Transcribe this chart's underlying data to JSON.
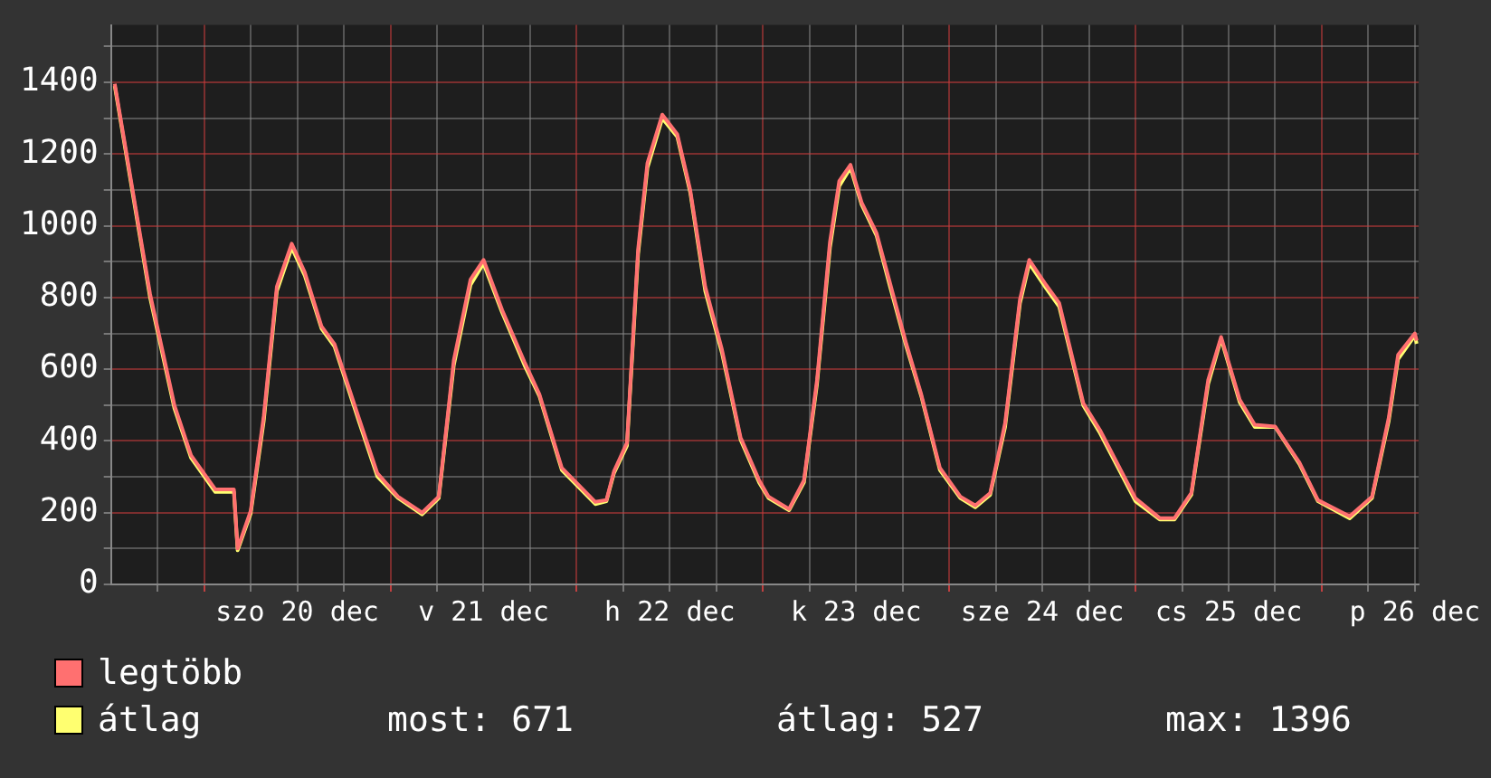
{
  "chart_data": {
    "type": "line",
    "x": [
      "--12-19T12:29",
      "--12-19T17:02",
      "--12-19T20:10",
      "--12-19T22:19",
      "--12-20T01:26",
      "--12-20T03:50",
      "--12-20T04:19",
      "--12-20T06:00",
      "--12-20T07:41",
      "--12-20T09:22",
      "--12-20T11:17",
      "--12-20T12:58",
      "--12-20T15:07",
      "--12-20T16:48",
      "--12-20T19:55",
      "--12-20T22:19",
      "--12-21T00:58",
      "--12-21T04:05",
      "--12-21T06:14",
      "--12-21T08:10",
      "--12-21T10:19",
      "--12-21T12:00",
      "--12-21T14:24",
      "--12-21T17:17",
      "--12-21T19:12",
      "--12-21T22:05",
      "--12-22T02:24",
      "--12-22T03:50",
      "--12-22T04:48",
      "--12-22T06:29",
      "--12-22T07:55",
      "--12-22T09:07",
      "--12-22T11:02",
      "--12-22T12:58",
      "--12-22T14:38",
      "--12-22T16:34",
      "--12-22T18:43",
      "--12-22T21:07",
      "--12-22T23:31",
      "--12-23T00:43",
      "--12-23T03:22",
      "--12-23T05:17",
      "--12-23T06:58",
      "--12-23T08:38",
      "--12-23T09:50",
      "--12-23T11:17",
      "--12-23T12:43",
      "--12-23T14:38",
      "--12-23T16:19",
      "--12-23T18:29",
      "--12-23T20:24",
      "--12-23T22:48",
      "--12-24T01:26",
      "--12-24T03:22",
      "--12-24T05:17",
      "--12-24T07:12",
      "--12-24T09:07",
      "--12-24T10:19",
      "--12-24T12:29",
      "--12-24T14:10",
      "--12-24T17:17",
      "--12-24T19:26",
      "--12-25T00:00",
      "--12-25T03:07",
      "--12-25T05:02",
      "--12-25T07:12",
      "--12-25T09:22",
      "--12-25T11:02",
      "--12-25T13:26",
      "--12-25T15:22",
      "--12-25T18:00",
      "--12-25T21:07",
      "--12-25T23:31",
      "--12-26T03:36",
      "--12-26T06:29",
      "--12-26T08:38",
      "--12-26T09:50",
      "--12-26T12:00",
      "--12-26T12:14"
    ],
    "series": [
      {
        "name": "legtöbb",
        "color": "#ff7070",
        "values": [
          1396,
          810,
          500,
          360,
          265,
          265,
          100,
          205,
          470,
          830,
          950,
          870,
          720,
          670,
          465,
          310,
          245,
          200,
          245,
          625,
          850,
          905,
          765,
          620,
          530,
          325,
          230,
          235,
          315,
          395,
          935,
          1175,
          1310,
          1255,
          1100,
          830,
          655,
          410,
          290,
          245,
          210,
          290,
          570,
          955,
          1125,
          1170,
          1065,
          980,
          845,
          670,
          530,
          325,
          245,
          220,
          255,
          450,
          795,
          905,
          835,
          785,
          505,
          430,
          240,
          185,
          185,
          255,
          570,
          690,
          515,
          445,
          440,
          340,
          235,
          190,
          245,
          465,
          640,
          700,
          680
        ]
      },
      {
        "name": "átlag",
        "color": "#ffff70",
        "values": [
          1390,
          800,
          491,
          353,
          258,
          258,
          95,
          198,
          456,
          818,
          939,
          861,
          714,
          663,
          456,
          301,
          241,
          195,
          241,
          611,
          835,
          895,
          758,
          611,
          525,
          319,
          224,
          232,
          310,
          387,
          921,
          1162,
          1300,
          1248,
          1093,
          818,
          646,
          404,
          284,
          241,
          207,
          284,
          559,
          939,
          1111,
          1162,
          1059,
          973,
          835,
          663,
          525,
          319,
          241,
          215,
          250,
          439,
          784,
          895,
          826,
          775,
          499,
          422,
          232,
          181,
          181,
          250,
          559,
          685,
          508,
          439,
          439,
          336,
          232,
          184,
          241,
          456,
          628,
          694,
          671
        ]
      }
    ],
    "xlim": [
      "--12-19T12:00",
      "--12-26T12:29"
    ],
    "xticks": [
      {
        "value": "--12-19T18:00",
        "label": null
      },
      {
        "value": "--12-20T00:00",
        "label": null
      },
      {
        "value": "--12-20T06:00",
        "label": null
      },
      {
        "value": "--12-20T12:00",
        "label": "szo 20 dec"
      },
      {
        "value": "--12-20T18:00",
        "label": null
      },
      {
        "value": "--12-21T00:00",
        "label": null
      },
      {
        "value": "--12-21T06:00",
        "label": null
      },
      {
        "value": "--12-21T12:00",
        "label": "v 21 dec"
      },
      {
        "value": "--12-21T18:00",
        "label": null
      },
      {
        "value": "--12-22T00:00",
        "label": null
      },
      {
        "value": "--12-22T06:00",
        "label": null
      },
      {
        "value": "--12-22T12:00",
        "label": "h 22 dec"
      },
      {
        "value": "--12-22T18:00",
        "label": null
      },
      {
        "value": "--12-23T00:00",
        "label": null
      },
      {
        "value": "--12-23T06:00",
        "label": null
      },
      {
        "value": "--12-23T12:00",
        "label": "k 23 dec"
      },
      {
        "value": "--12-23T18:00",
        "label": null
      },
      {
        "value": "--12-24T00:00",
        "label": null
      },
      {
        "value": "--12-24T06:00",
        "label": null
      },
      {
        "value": "--12-24T12:00",
        "label": "sze 24 dec"
      },
      {
        "value": "--12-24T18:00",
        "label": null
      },
      {
        "value": "--12-25T00:00",
        "label": null
      },
      {
        "value": "--12-25T06:00",
        "label": null
      },
      {
        "value": "--12-25T12:00",
        "label": "cs 25 dec"
      },
      {
        "value": "--12-25T18:00",
        "label": null
      },
      {
        "value": "--12-26T00:00",
        "label": null
      },
      {
        "value": "--12-26T06:00",
        "label": null
      },
      {
        "value": "--12-26T12:00",
        "label": "p 26 dec"
      }
    ],
    "ylim": [
      0,
      1560
    ],
    "yticks": [
      0,
      {
        "value": 100,
        "label": null
      },
      200,
      {
        "value": 300,
        "label": null
      },
      400,
      {
        "value": 500,
        "label": null
      },
      600,
      {
        "value": 700,
        "label": null
      },
      800,
      {
        "value": 900,
        "label": null
      },
      1000,
      {
        "value": 1100,
        "label": null
      },
      1200,
      {
        "value": 1300,
        "label": null
      },
      1400,
      {
        "value": 1500,
        "label": null
      }
    ],
    "grid": true,
    "legend": "bottom",
    "annotations": [
      "most: 671",
      "átlag: 527",
      "max: 1396"
    ]
  }
}
